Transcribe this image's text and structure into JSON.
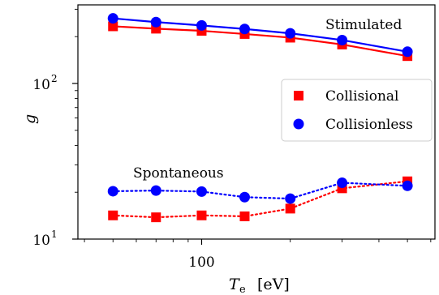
{
  "chart_data": {
    "type": "line",
    "xlabel_var": "T",
    "xlabel_sub": "e",
    "xlabel_unit": "[eV]",
    "ylabel": "g",
    "xscale": "log",
    "yscale": "log",
    "xlim": [
      38,
      620
    ],
    "ylim": [
      10,
      320
    ],
    "x_tick_labels": [
      {
        "value": 100,
        "label": "100"
      }
    ],
    "y_tick_labels": [
      {
        "value": 10,
        "base": "10",
        "exp": "1"
      },
      {
        "value": 100,
        "base": "10",
        "exp": "2"
      }
    ],
    "x": [
      50,
      70,
      100,
      140,
      200,
      300,
      500
    ],
    "legend_placement": "center-right",
    "grid": false,
    "series": [
      {
        "name": "Collisional",
        "group": "Stimulated",
        "marker": "square",
        "line": "solid",
        "color": "#ff0000",
        "values": [
          233,
          225,
          218,
          208,
          197,
          178,
          150
        ]
      },
      {
        "name": "Collisionless",
        "group": "Stimulated",
        "marker": "circle",
        "line": "solid",
        "color": "#0000ff",
        "values": [
          262,
          248,
          236,
          224,
          210,
          190,
          160
        ]
      },
      {
        "name": "Collisional",
        "group": "Spontaneous",
        "marker": "square",
        "line": "dotted",
        "color": "#ff0000",
        "values": [
          14.2,
          13.8,
          14.2,
          14.0,
          15.7,
          21.2,
          23.5
        ]
      },
      {
        "name": "Collisionless",
        "group": "Spontaneous",
        "marker": "circle",
        "line": "dotted",
        "color": "#0000ff",
        "values": [
          20.3,
          20.5,
          20.2,
          18.6,
          18.2,
          23.0,
          22.0
        ]
      }
    ],
    "annotations": {
      "stimulated": "Stimulated",
      "spontaneous": "Spontaneous"
    },
    "legend": [
      {
        "label": "Collisional",
        "marker": "square",
        "color": "#ff0000"
      },
      {
        "label": "Collisionless",
        "marker": "circle",
        "color": "#0000ff"
      }
    ]
  }
}
